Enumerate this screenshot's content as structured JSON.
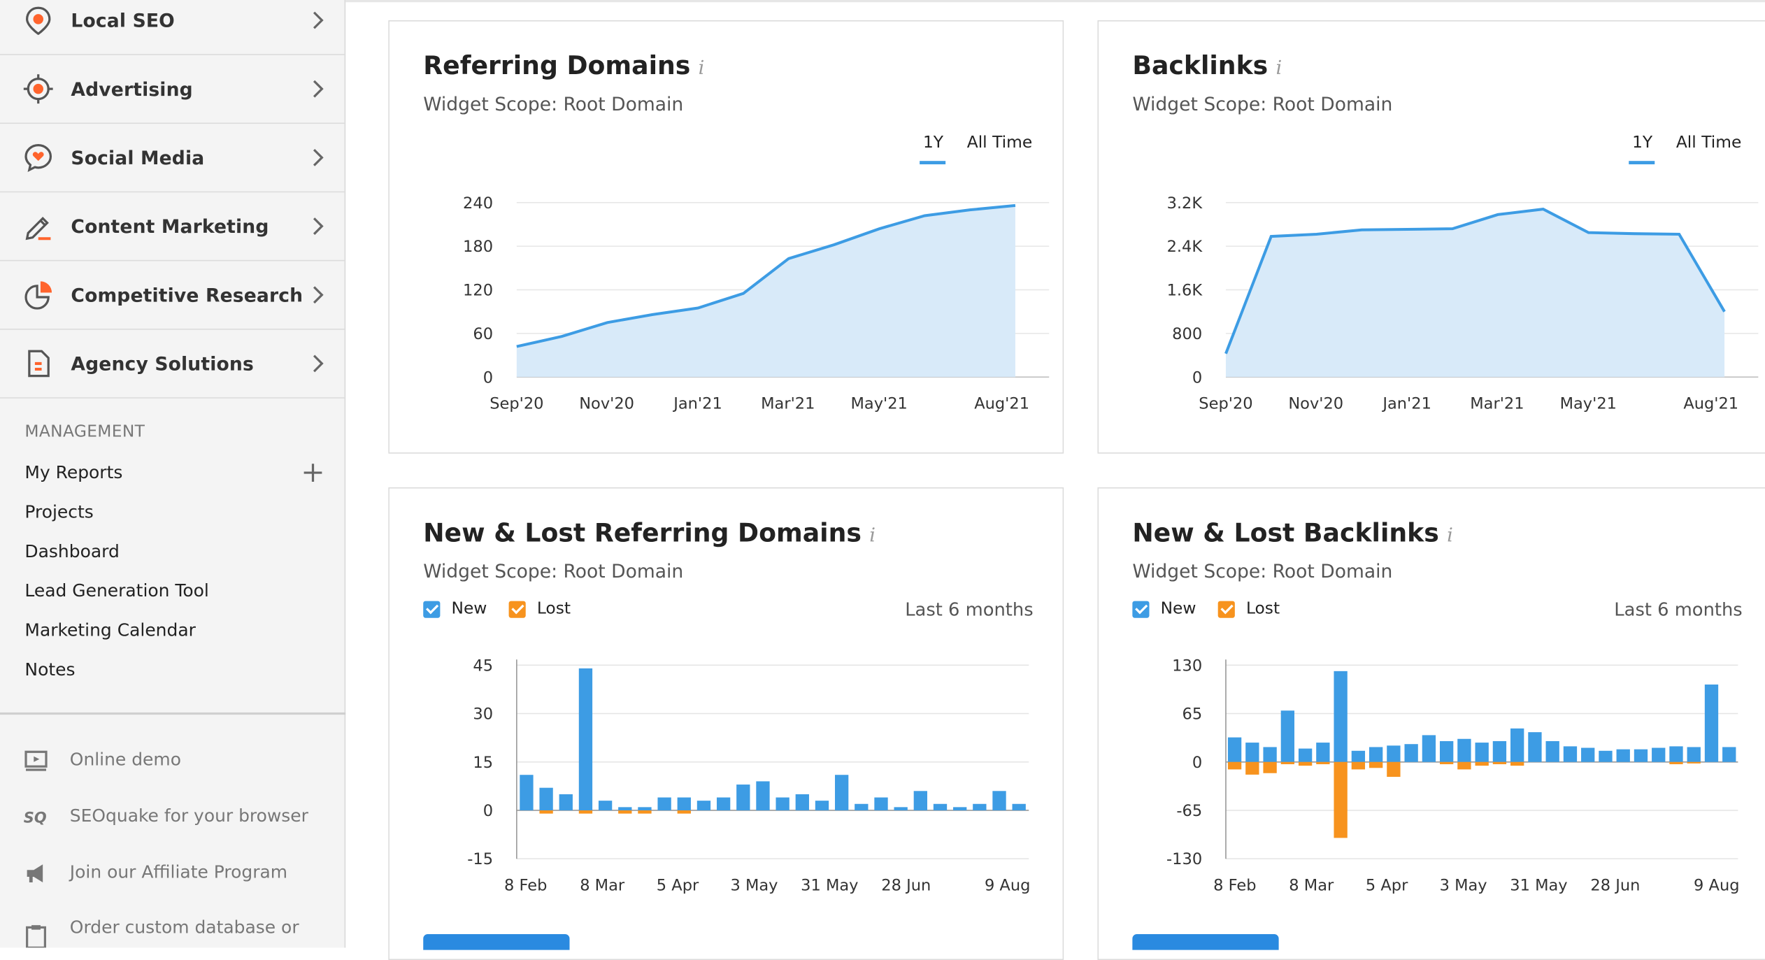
{
  "sidebar": {
    "items": [
      {
        "label": "Local SEO",
        "icon": "location-pin-icon"
      },
      {
        "label": "Advertising",
        "icon": "target-icon"
      },
      {
        "label": "Social Media",
        "icon": "chat-heart-icon"
      },
      {
        "label": "Content Marketing",
        "icon": "pencil-icon"
      },
      {
        "label": "Competitive Research",
        "icon": "pie-chart-icon"
      },
      {
        "label": "Agency Solutions",
        "icon": "document-icon"
      }
    ],
    "management_title": "MANAGEMENT",
    "management_links": [
      "My Reports",
      "Projects",
      "Dashboard",
      "Lead Generation Tool",
      "Marketing Calendar",
      "Notes"
    ],
    "footer_links": [
      {
        "label": "Online demo",
        "icon": "monitor-play-icon"
      },
      {
        "label": "SEOquake for your browser",
        "icon": "seoquake-icon"
      },
      {
        "label": "Join our Affiliate Program",
        "icon": "megaphone-icon"
      },
      {
        "label": "Order custom database or",
        "icon": "clipboard-icon"
      }
    ]
  },
  "colors": {
    "accent": "#3d9ce4",
    "orange": "#f7931e",
    "icon_orange": "#ff642d",
    "area_fill": "#d8eaf9",
    "line": "#3d9ce4"
  },
  "cards": {
    "referring_domains": {
      "title": "Referring Domains",
      "info": "i",
      "scope": "Widget Scope: Root Domain",
      "tab_1y": "1Y",
      "tab_all": "All Time"
    },
    "backlinks": {
      "title": "Backlinks",
      "info": "i",
      "scope": "Widget Scope: Root Domain",
      "tab_1y": "1Y",
      "tab_all": "All Time"
    },
    "new_lost_domains": {
      "title": "New & Lost Referring Domains",
      "info": "i",
      "scope": "Widget Scope: Root Domain",
      "legend_new": "New",
      "legend_lost": "Lost",
      "period": "Last 6 months"
    },
    "new_lost_backlinks": {
      "title": "New & Lost Backlinks",
      "info": "i",
      "scope": "Widget Scope: Root Domain",
      "legend_new": "New",
      "legend_lost": "Lost",
      "period": "Last 6 months"
    }
  },
  "chart_data": [
    {
      "id": "referring_domains",
      "type": "area",
      "title": "Referring Domains",
      "x_labels": [
        "Sep'20",
        "Nov'20",
        "Jan'21",
        "Mar'21",
        "May'21",
        "Aug'21"
      ],
      "y_ticks": [
        "0",
        "60",
        "120",
        "180",
        "240"
      ],
      "ylim": [
        0,
        240
      ],
      "values": [
        42,
        56,
        75,
        86,
        95,
        115,
        163,
        182,
        204,
        222,
        230,
        236
      ]
    },
    {
      "id": "backlinks",
      "type": "area",
      "title": "Backlinks",
      "x_labels": [
        "Sep'20",
        "Nov'20",
        "Jan'21",
        "Mar'21",
        "May'21",
        "Aug'21"
      ],
      "y_ticks": [
        "0",
        "800",
        "1.6K",
        "2.4K",
        "3.2K"
      ],
      "ylim": [
        0,
        3200
      ],
      "values": [
        430,
        2580,
        2620,
        2700,
        2710,
        2720,
        2980,
        3080,
        2650,
        2630,
        2620,
        1200
      ]
    },
    {
      "id": "new_lost_domains",
      "type": "bar",
      "title": "New & Lost Referring Domains",
      "x_labels": [
        "8 Feb",
        "8 Mar",
        "5 Apr",
        "3 May",
        "31 May",
        "28 Jun",
        "9 Aug"
      ],
      "y_ticks": [
        "-15",
        "0",
        "15",
        "30",
        "45"
      ],
      "ylim": [
        -15,
        45
      ],
      "series": [
        {
          "name": "New",
          "values": [
            11,
            7,
            5,
            44,
            3,
            1,
            1,
            4,
            4,
            3,
            4,
            8,
            9,
            4,
            5,
            3,
            11,
            2,
            4,
            1,
            6,
            2,
            1,
            2,
            6,
            2
          ]
        },
        {
          "name": "Lost",
          "values": [
            0,
            -1,
            0,
            -1,
            0,
            -1,
            -1,
            0,
            -1,
            0,
            0,
            0,
            0,
            0,
            0,
            0,
            0,
            0,
            0,
            0,
            0,
            0,
            0,
            0,
            0,
            0
          ]
        }
      ]
    },
    {
      "id": "new_lost_backlinks",
      "type": "bar",
      "title": "New & Lost Backlinks",
      "x_labels": [
        "8 Feb",
        "8 Mar",
        "5 Apr",
        "3 May",
        "31 May",
        "28 Jun",
        "9 Aug"
      ],
      "y_ticks": [
        "-130",
        "-65",
        "0",
        "65",
        "130"
      ],
      "ylim": [
        -130,
        130
      ],
      "series": [
        {
          "name": "New",
          "values": [
            33,
            26,
            20,
            69,
            18,
            26,
            122,
            15,
            20,
            22,
            24,
            36,
            28,
            31,
            26,
            28,
            45,
            40,
            28,
            21,
            19,
            15,
            17,
            17,
            19,
            21,
            20,
            104,
            20
          ]
        },
        {
          "name": "Lost",
          "values": [
            -10,
            -17,
            -15,
            -3,
            -5,
            -3,
            -102,
            -10,
            -8,
            -20,
            0,
            0,
            -3,
            -10,
            -5,
            -3,
            -5,
            0,
            0,
            0,
            0,
            0,
            0,
            0,
            0,
            -3,
            -2,
            0,
            0
          ]
        }
      ]
    }
  ]
}
